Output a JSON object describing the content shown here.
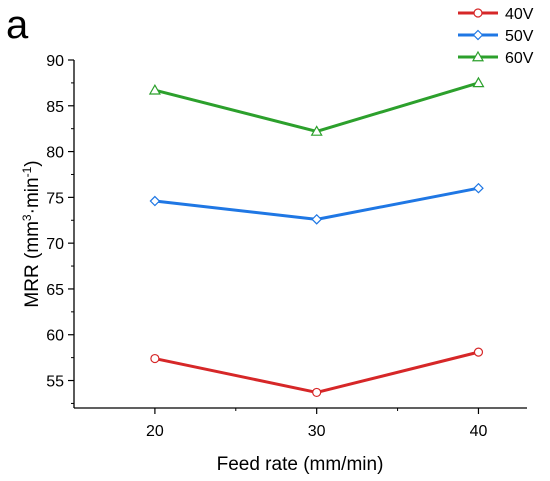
{
  "chart_data": {
    "type": "line",
    "panel_label": "a",
    "xlabel": "Feed rate (mm/min)",
    "ylabel_main": "MRR (mm",
    "ylabel_sup1": "3",
    "ylabel_mid": "·min",
    "ylabel_sup2": "-1",
    "ylabel_end": ")",
    "x": [
      20,
      30,
      40
    ],
    "xticks": [
      "20",
      "30",
      "40"
    ],
    "xlim": [
      15,
      43
    ],
    "ylim": [
      52,
      90
    ],
    "yticks": [
      "55",
      "60",
      "65",
      "70",
      "75",
      "80",
      "85",
      "90"
    ],
    "grid": false,
    "legend_position": "top-right",
    "series": [
      {
        "name": "40V",
        "values": [
          57.4,
          53.7,
          58.1
        ],
        "color": "#d62728",
        "marker": "circle"
      },
      {
        "name": "50V",
        "values": [
          74.6,
          72.6,
          76.0
        ],
        "color": "#1f77e4",
        "marker": "diamond"
      },
      {
        "name": "60V",
        "values": [
          86.7,
          82.2,
          87.5
        ],
        "color": "#2ca02c",
        "marker": "triangle"
      }
    ]
  }
}
